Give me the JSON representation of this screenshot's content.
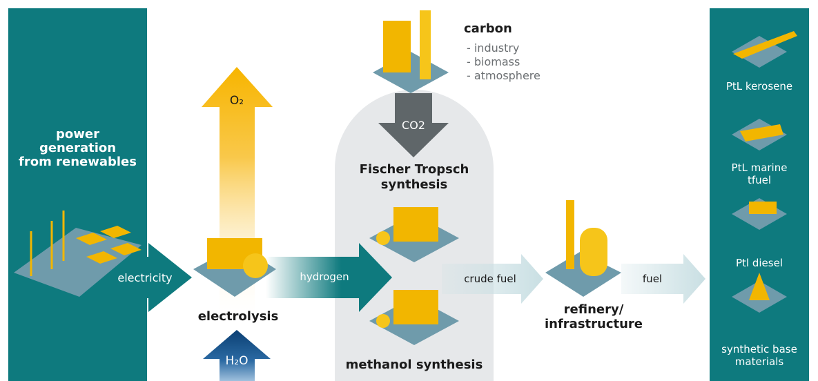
{
  "power_generation": {
    "lines": [
      "power",
      "generation",
      "from renewables"
    ]
  },
  "flows": {
    "electricity": "electricity",
    "hydrogen": "hydrogen",
    "crude_fuel": "crude fuel",
    "fuel": "fuel",
    "oxygen": "O₂",
    "water": "H₂O",
    "co2": "CO2"
  },
  "electrolysis": "electrolysis",
  "carbon": {
    "title": "carbon",
    "sources": [
      "- industry",
      "- biomass",
      "- atmosphere"
    ]
  },
  "synthesis": {
    "fischer_tropsch": [
      "Fischer Tropsch",
      "synthesis"
    ],
    "methanol": "methanol synthesis"
  },
  "refinery": [
    "refinery/",
    "infrastructure"
  ],
  "products": [
    [
      "PtL kerosene"
    ],
    [
      "PtL marine",
      "tfuel"
    ],
    [
      "Ptl diesel"
    ],
    [
      "synthetic base",
      "materials"
    ]
  ]
}
